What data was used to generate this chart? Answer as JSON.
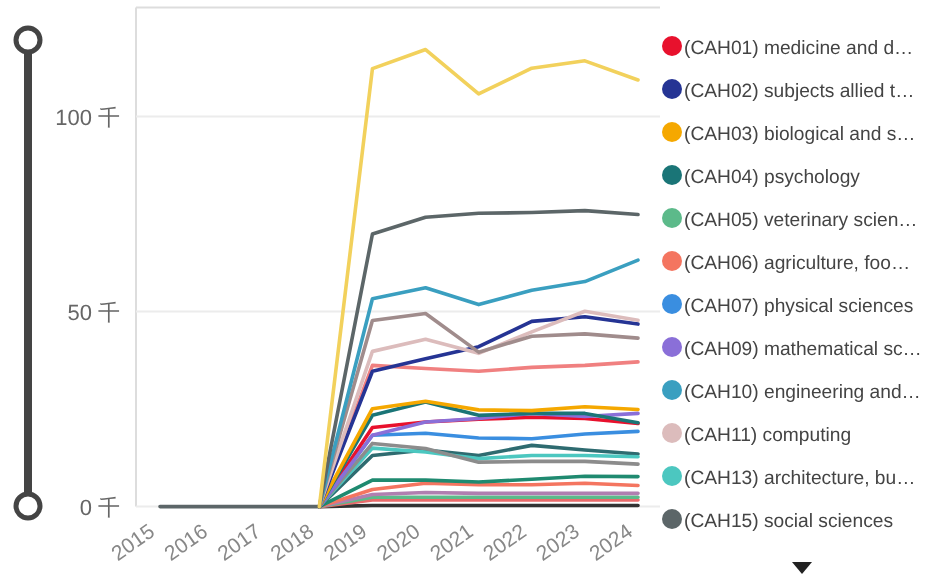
{
  "chart_data": {
    "type": "line",
    "categories": [
      "2015",
      "2016",
      "2017",
      "2018",
      "2019",
      "2020",
      "2021",
      "2022",
      "2023",
      "2024"
    ],
    "ylim": [
      0,
      128
    ],
    "yticks": [
      {
        "value": 0,
        "label": "0 千"
      },
      {
        "value": 50,
        "label": "50 千"
      },
      {
        "value": 100,
        "label": "100 千"
      }
    ],
    "grid": "y",
    "legend": "right",
    "marker": "none",
    "line_style": "solid",
    "series": [
      {
        "color": "#f2d15c",
        "values": [
          null,
          null,
          null,
          0,
          112.3,
          117.2,
          105.8,
          112.4,
          114.3,
          109.4
        ]
      },
      {
        "name": "(CAH15) social sciences",
        "color": "#5c6668",
        "values": [
          0,
          0,
          0,
          0,
          69.9,
          74.2,
          75.2,
          75.4,
          75.9,
          74.9
        ]
      },
      {
        "name": "(CAH10) engineering and…",
        "color": "#3a9fc0",
        "values": [
          null,
          null,
          null,
          0,
          53.3,
          56.1,
          51.8,
          55.5,
          57.7,
          63.2
        ]
      },
      {
        "color": "#a08c8c",
        "values": [
          null,
          null,
          null,
          0,
          47.7,
          49.5,
          39.6,
          43.7,
          44.3,
          43.2
        ]
      },
      {
        "name": "(CAH11) computing",
        "color": "#dcbcbc",
        "values": [
          null,
          null,
          null,
          0,
          39.8,
          42.9,
          39.3,
          44.8,
          50.1,
          47.8
        ]
      },
      {
        "name": "(CAH02) subjects allied t…",
        "color": "#253494",
        "values": [
          null,
          null,
          null,
          0,
          34.7,
          37.9,
          41.0,
          47.5,
          48.7,
          46.8
        ]
      },
      {
        "color": "#f08080",
        "values": [
          null,
          null,
          null,
          0,
          36.2,
          35.4,
          34.7,
          35.7,
          36.2,
          37.1
        ]
      },
      {
        "name": "(CAH03) biological and s…",
        "color": "#f5a800",
        "values": [
          null,
          null,
          null,
          0,
          25.1,
          27.0,
          24.8,
          24.6,
          25.6,
          24.9
        ]
      },
      {
        "name": "(CAH04) psychology",
        "color": "#1a7577",
        "values": [
          null,
          null,
          null,
          0,
          23.4,
          26.8,
          23.4,
          23.9,
          23.9,
          21.5
        ]
      },
      {
        "name": "(CAH09) mathematical sc…",
        "color": "#8a6fd8",
        "values": [
          null,
          null,
          null,
          0,
          18.3,
          21.7,
          22.6,
          23.9,
          23.1,
          23.9
        ]
      },
      {
        "name": "(CAH01) medicine and d…",
        "color": "#e8112d",
        "values": [
          null,
          null,
          null,
          0,
          20.3,
          21.7,
          22.4,
          22.9,
          22.6,
          21.3
        ]
      },
      {
        "name": "(CAH07) physical sciences",
        "color": "#3a8ee0",
        "values": [
          null,
          null,
          null,
          0,
          18.3,
          18.8,
          17.6,
          17.4,
          18.6,
          19.3
        ]
      },
      {
        "color": "#8c8c8c",
        "values": [
          null,
          null,
          null,
          0,
          16.2,
          14.9,
          11.4,
          11.6,
          11.6,
          10.9
        ]
      },
      {
        "name": "(CAH13) architecture, bu…",
        "color": "#4cc7c0",
        "values": [
          null,
          null,
          null,
          0,
          15.0,
          14.0,
          12.3,
          13.1,
          13.1,
          12.8
        ]
      },
      {
        "color": "#2e6b70",
        "values": [
          null,
          null,
          null,
          0,
          13.1,
          14.5,
          13.1,
          15.7,
          14.5,
          13.5
        ]
      },
      {
        "color": "#1f8a70",
        "values": [
          null,
          null,
          null,
          0,
          6.8,
          6.8,
          6.3,
          7.0,
          7.8,
          7.7
        ]
      },
      {
        "name": "(CAH06) agriculture, foo…",
        "color": "#f47560",
        "values": [
          null,
          null,
          null,
          0,
          4.4,
          6.0,
          5.6,
          5.6,
          6.0,
          5.4
        ]
      },
      {
        "color": "#b07fb0",
        "values": [
          null,
          null,
          null,
          0,
          3.1,
          3.6,
          3.4,
          3.4,
          3.4,
          3.4
        ]
      },
      {
        "name": "(CAH05) veterinary scien…",
        "color": "#5cba8a",
        "values": [
          null,
          null,
          null,
          0,
          2.4,
          2.4,
          2.4,
          2.4,
          2.4,
          2.4
        ]
      },
      {
        "color": "#e86a6a",
        "values": [
          null,
          null,
          null,
          0,
          1.7,
          1.7,
          1.7,
          1.7,
          1.7,
          1.7
        ]
      },
      {
        "color": "#333333",
        "values": [
          null,
          null,
          null,
          0,
          0.3,
          0.3,
          0.3,
          0.3,
          0.3,
          0.3
        ]
      }
    ]
  }
}
